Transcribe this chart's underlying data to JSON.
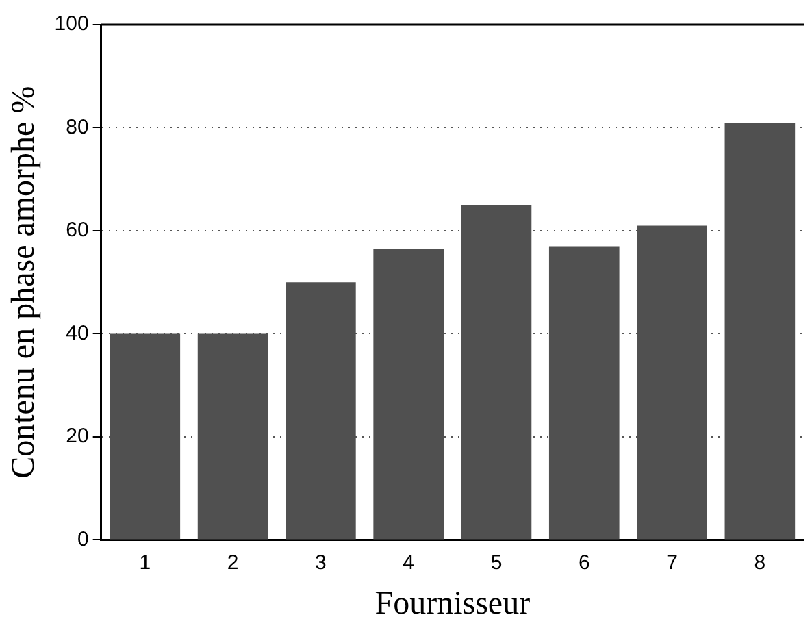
{
  "chart_data": {
    "type": "bar",
    "xlabel": "Fournisseur",
    "ylabel": "Contenu en phase amorphe %",
    "categories": [
      "1",
      "2",
      "3",
      "4",
      "5",
      "6",
      "7",
      "8"
    ],
    "values": [
      40,
      40,
      50,
      56.5,
      65,
      57,
      61,
      81
    ],
    "color": "#505050",
    "ylim": [
      0,
      100
    ],
    "yticks": [
      0,
      20,
      40,
      60,
      80,
      100
    ],
    "grid": "y",
    "line_style": "dotted"
  }
}
